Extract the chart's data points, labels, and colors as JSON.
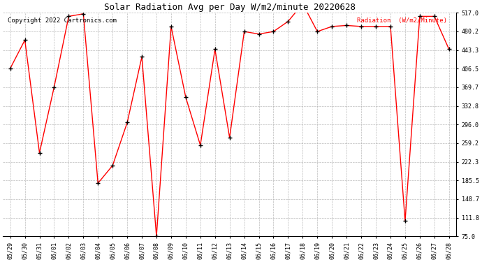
{
  "title": "Solar Radiation Avg per Day W/m2/minute 20220628",
  "copyright": "Copyright 2022 Cartronics.com",
  "legend_label": "Radiation  (W/m2/Minute)",
  "dates": [
    "05/29",
    "05/30",
    "05/31",
    "06/01",
    "06/02",
    "06/03",
    "06/04",
    "06/05",
    "06/06",
    "06/07",
    "06/08",
    "06/09",
    "06/10",
    "06/11",
    "06/12",
    "06/13",
    "06/14",
    "06/15",
    "06/16",
    "06/17",
    "06/18",
    "06/19",
    "06/20",
    "06/21",
    "06/22",
    "06/23",
    "06/24",
    "06/25",
    "06/26",
    "06/27",
    "06/28"
  ],
  "values": [
    407,
    463,
    240,
    370,
    510,
    515,
    180,
    215,
    300,
    430,
    75,
    490,
    350,
    255,
    445,
    270,
    480,
    475,
    480,
    500,
    535,
    480,
    490,
    492,
    490,
    490,
    490,
    105,
    510,
    510,
    445
  ],
  "ylim": [
    75.0,
    517.0
  ],
  "yticks": [
    75.0,
    111.8,
    148.7,
    185.5,
    222.3,
    259.2,
    296.0,
    332.8,
    369.7,
    406.5,
    443.3,
    480.2,
    517.0
  ],
  "line_color": "red",
  "marker_color": "black",
  "bg_color": "white",
  "grid_color": "#aaaaaa",
  "title_fontsize": 9,
  "copyright_fontsize": 6.5,
  "legend_fontsize": 6.5,
  "legend_color": "red",
  "tick_label_fontsize": 6
}
